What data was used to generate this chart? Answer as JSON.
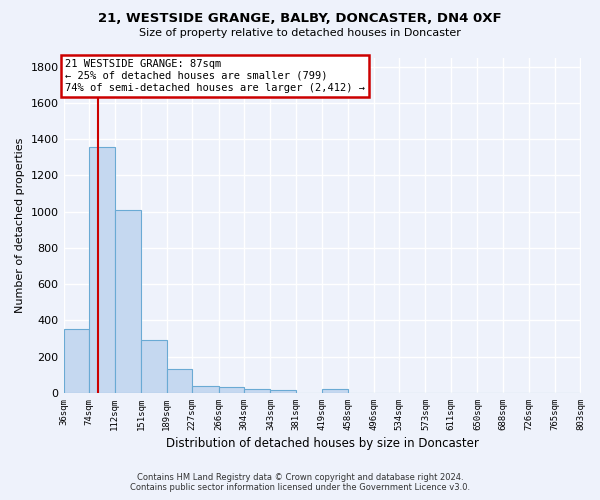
{
  "title": "21, WESTSIDE GRANGE, BALBY, DONCASTER, DN4 0XF",
  "subtitle": "Size of property relative to detached houses in Doncaster",
  "xlabel": "Distribution of detached houses by size in Doncaster",
  "ylabel": "Number of detached properties",
  "bar_values": [
    352,
    1355,
    1010,
    291,
    130,
    40,
    35,
    20,
    15,
    0,
    20,
    0,
    0,
    0,
    0,
    0,
    0,
    0,
    0,
    0
  ],
  "bin_edges": [
    36,
    74,
    112,
    151,
    189,
    227,
    266,
    304,
    343,
    381,
    419,
    458,
    496,
    534,
    573,
    611,
    650,
    688,
    726,
    765,
    803
  ],
  "tick_labels": [
    "36sqm",
    "74sqm",
    "112sqm",
    "151sqm",
    "189sqm",
    "227sqm",
    "266sqm",
    "304sqm",
    "343sqm",
    "381sqm",
    "419sqm",
    "458sqm",
    "496sqm",
    "534sqm",
    "573sqm",
    "611sqm",
    "650sqm",
    "688sqm",
    "726sqm",
    "765sqm",
    "803sqm"
  ],
  "bar_color": "#c5d8f0",
  "bar_edge_color": "#6aaad4",
  "property_line_x": 87,
  "annotation_text": "21 WESTSIDE GRANGE: 87sqm\n← 25% of detached houses are smaller (799)\n74% of semi-detached houses are larger (2,412) →",
  "annotation_box_color": "#ffffff",
  "annotation_box_edge": "#cc0000",
  "property_line_color": "#cc0000",
  "background_color": "#eef2fb",
  "grid_color": "#ffffff",
  "ylim": [
    0,
    1850
  ],
  "yticks": [
    0,
    200,
    400,
    600,
    800,
    1000,
    1200,
    1400,
    1600,
    1800
  ],
  "footer_line1": "Contains HM Land Registry data © Crown copyright and database right 2024.",
  "footer_line2": "Contains public sector information licensed under the Government Licence v3.0."
}
